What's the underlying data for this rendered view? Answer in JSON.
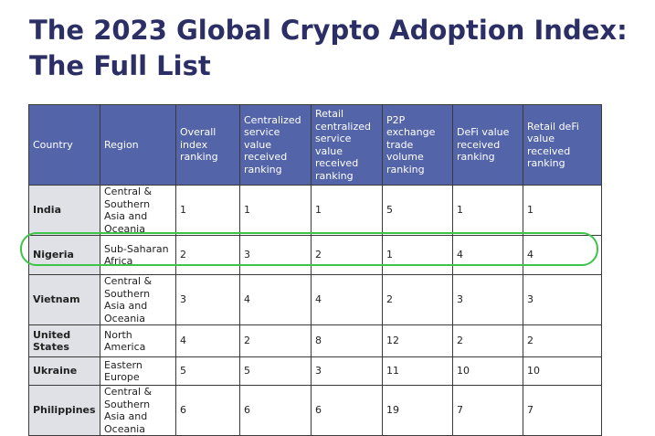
{
  "title_line1": "The 2023 Global Crypto Adoption Index:",
  "title_line2": "The Full List",
  "highlight_color": "#3ec449",
  "header_color": "#5464a8",
  "columns": [
    "Country",
    "Region",
    "Overall index ranking",
    "Centralized service value received ranking",
    "Retail centralized service value received ranking",
    "P2P exchange trade volume ranking",
    "DeFi value received ranking",
    "Retail deFi value received ranking"
  ],
  "rows": [
    {
      "country": "India",
      "region": "Central & Southern Asia and Oceania",
      "overall": "1",
      "centralized": "1",
      "retail_centralized": "1",
      "p2p": "5",
      "defi": "1",
      "retail_defi": "1"
    },
    {
      "country": "Nigeria",
      "region": "Sub-Saharan Africa",
      "overall": "2",
      "centralized": "3",
      "retail_centralized": "2",
      "p2p": "1",
      "defi": "4",
      "retail_defi": "4"
    },
    {
      "country": "Vietnam",
      "region": "Central & Southern Asia and Oceania",
      "overall": "3",
      "centralized": "4",
      "retail_centralized": "4",
      "p2p": "2",
      "defi": "3",
      "retail_defi": "3"
    },
    {
      "country": "United States",
      "region": "North America",
      "overall": "4",
      "centralized": "2",
      "retail_centralized": "8",
      "p2p": "12",
      "defi": "2",
      "retail_defi": "2"
    },
    {
      "country": "Ukraine",
      "region": "Eastern Europe",
      "overall": "5",
      "centralized": "5",
      "retail_centralized": "3",
      "p2p": "11",
      "defi": "10",
      "retail_defi": "10"
    },
    {
      "country": "Philippines",
      "region": "Central & Southern Asia and Oceania",
      "overall": "6",
      "centralized": "6",
      "retail_centralized": "6",
      "p2p": "19",
      "defi": "7",
      "retail_defi": "7"
    }
  ]
}
